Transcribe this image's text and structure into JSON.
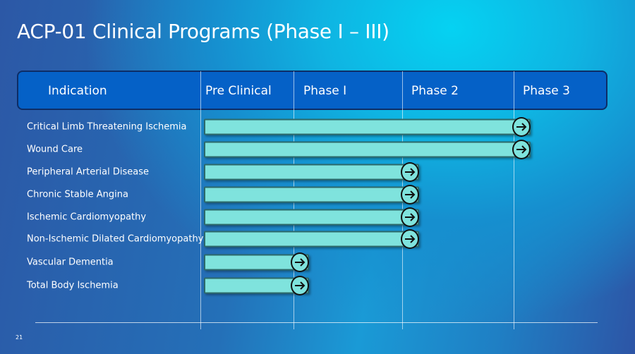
{
  "title": "ACP-01 Clinical Programs (Phase I – III)",
  "header": {
    "columns": [
      "Indication",
      "Pre Clinical",
      "Phase I",
      "Phase 2",
      "Phase 3"
    ]
  },
  "rows": [
    {
      "label": "Critical Limb Threatening Ischemia",
      "reached_stage": "Phase 3"
    },
    {
      "label": "Wound Care",
      "reached_stage": "Phase 3"
    },
    {
      "label": "Peripheral Arterial Disease",
      "reached_stage": "Phase 2"
    },
    {
      "label": "Chronic Stable Angina",
      "reached_stage": "Phase 2"
    },
    {
      "label": "Ischemic Cardiomyopathy",
      "reached_stage": "Phase 2"
    },
    {
      "label": "Non-Ischemic Dilated Cardiomyopathy",
      "reached_stage": "Phase 2"
    },
    {
      "label": "Vascular Dementia",
      "reached_stage": "Phase I"
    },
    {
      "label": "Total Body Ischemia",
      "reached_stage": "Phase I"
    }
  ],
  "page_number": "21",
  "colors": {
    "bar": "#7fe3dd",
    "header": "#0561c7"
  }
}
